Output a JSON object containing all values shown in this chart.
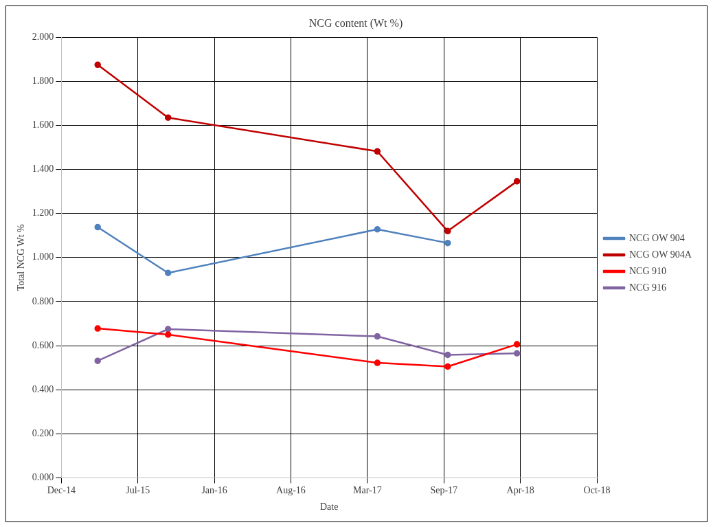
{
  "chart_data": {
    "type": "line",
    "title": "NCG content (Wt %)",
    "xlabel": "Date",
    "ylabel": "Total NCG Wt %",
    "x": [
      "2015-03-31",
      "2015-10-01",
      "2017-03-31",
      "2017-10-01",
      "2018-03-31"
    ],
    "series": [
      {
        "name": "NCG OW 904",
        "color": "#4f81bd",
        "values": [
          1.138,
          0.93,
          1.128,
          1.066,
          null
        ]
      },
      {
        "name": "NCG OW 904A",
        "color": "#c00000",
        "values": [
          1.875,
          1.635,
          1.482,
          1.12,
          1.346
        ]
      },
      {
        "name": "NCG 910",
        "color": "#ff0000",
        "values": [
          0.678,
          0.65,
          0.522,
          0.505,
          0.606
        ]
      },
      {
        "name": "NCG 916",
        "color": "#8064a2",
        "values": [
          0.531,
          0.675,
          0.642,
          0.558,
          0.565
        ]
      }
    ],
    "xlim": [
      "2014-12-26",
      "2018-10-26"
    ],
    "xticks": [
      {
        "value": "2014-12-26",
        "label": "Dec-14"
      },
      {
        "value": "2015-07-14",
        "label": "Jul-15"
      },
      {
        "value": "2016-01-30",
        "label": "Jan-16"
      },
      {
        "value": "2016-08-17",
        "label": "Aug-16"
      },
      {
        "value": "2017-03-05",
        "label": "Mar-17"
      },
      {
        "value": "2017-09-21",
        "label": "Sep-17"
      },
      {
        "value": "2018-04-09",
        "label": "Apr-18"
      },
      {
        "value": "2018-10-26",
        "label": "Oct-18"
      }
    ],
    "ylim": [
      0,
      2
    ],
    "yticks": [
      {
        "value": 0,
        "label": "0.000"
      },
      {
        "value": 0.2,
        "label": "0.200"
      },
      {
        "value": 0.4,
        "label": "0.400"
      },
      {
        "value": 0.6,
        "label": "0.600"
      },
      {
        "value": 0.8,
        "label": "0.800"
      },
      {
        "value": 1,
        "label": "1.000"
      },
      {
        "value": 1.2,
        "label": "1.200"
      },
      {
        "value": 1.4,
        "label": "1.400"
      },
      {
        "value": 1.6,
        "label": "1.600"
      },
      {
        "value": 1.8,
        "label": "1.800"
      },
      {
        "value": 2,
        "label": "2.000"
      }
    ],
    "grid": true,
    "legend": "right",
    "marker": "circle",
    "line_style": "solid"
  }
}
